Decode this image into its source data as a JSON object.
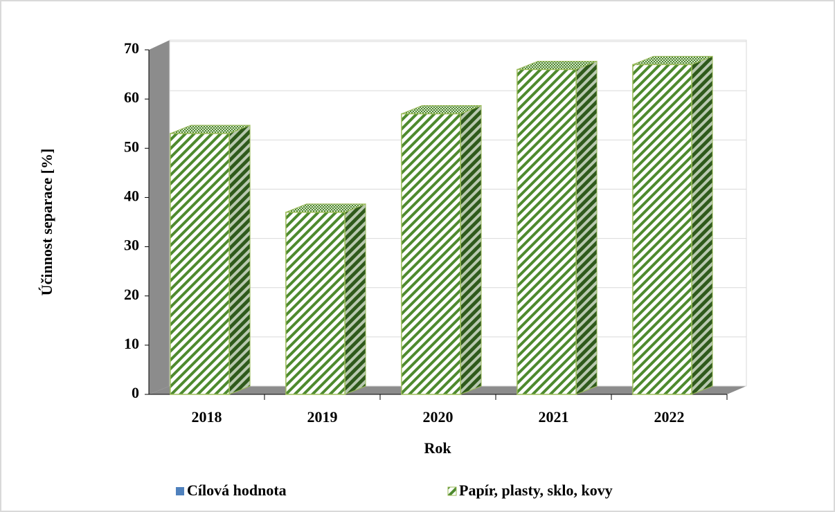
{
  "chart_data": {
    "type": "bar3d",
    "categories": [
      "2018",
      "2019",
      "2020",
      "2021",
      "2022"
    ],
    "series": [
      {
        "name": "Cílová hodnota",
        "color": "#4f81bd",
        "values": [
          null,
          null,
          null,
          null,
          null
        ]
      },
      {
        "name": "Papír, plasty, sklo, kovy",
        "color": "#4e8a2e",
        "values": [
          53,
          37,
          57,
          66,
          67
        ]
      }
    ],
    "ylim": [
      0,
      70
    ],
    "yticks": [
      0,
      10,
      20,
      30,
      40,
      50,
      60,
      70
    ],
    "y_label": "Účinnost separace [%]",
    "x_label": "Rok",
    "grid": true
  }
}
